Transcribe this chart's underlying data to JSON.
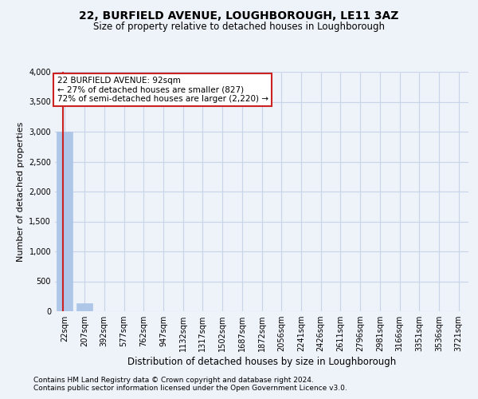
{
  "title": "22, BURFIELD AVENUE, LOUGHBOROUGH, LE11 3AZ",
  "subtitle": "Size of property relative to detached houses in Loughborough",
  "xlabel": "Distribution of detached houses by size in Loughborough",
  "ylabel": "Number of detached properties",
  "footnote1": "Contains HM Land Registry data © Crown copyright and database right 2024.",
  "footnote2": "Contains public sector information licensed under the Open Government Licence v3.0.",
  "annotation_line1": "22 BURFIELD AVENUE: 92sqm",
  "annotation_line2": "← 27% of detached houses are smaller (827)",
  "annotation_line3": "72% of semi-detached houses are larger (2,220) →",
  "categories": [
    "22sqm",
    "207sqm",
    "392sqm",
    "577sqm",
    "762sqm",
    "947sqm",
    "1132sqm",
    "1317sqm",
    "1502sqm",
    "1687sqm",
    "1872sqm",
    "2056sqm",
    "2241sqm",
    "2426sqm",
    "2611sqm",
    "2796sqm",
    "2981sqm",
    "3166sqm",
    "3351sqm",
    "3536sqm",
    "3721sqm"
  ],
  "values": [
    3000,
    130,
    0,
    0,
    0,
    0,
    0,
    0,
    0,
    0,
    0,
    0,
    0,
    0,
    0,
    0,
    0,
    0,
    0,
    0,
    0
  ],
  "bar_color": "#aec6e8",
  "highlight_color": "#cc2222",
  "annotation_box_facecolor": "#ffffff",
  "annotation_box_edgecolor": "#cc2222",
  "grid_color": "#c8d4e8",
  "background_color": "#eef2f9",
  "ylim_max": 4000,
  "yticks": [
    0,
    500,
    1000,
    1500,
    2000,
    2500,
    3000,
    3500,
    4000
  ]
}
